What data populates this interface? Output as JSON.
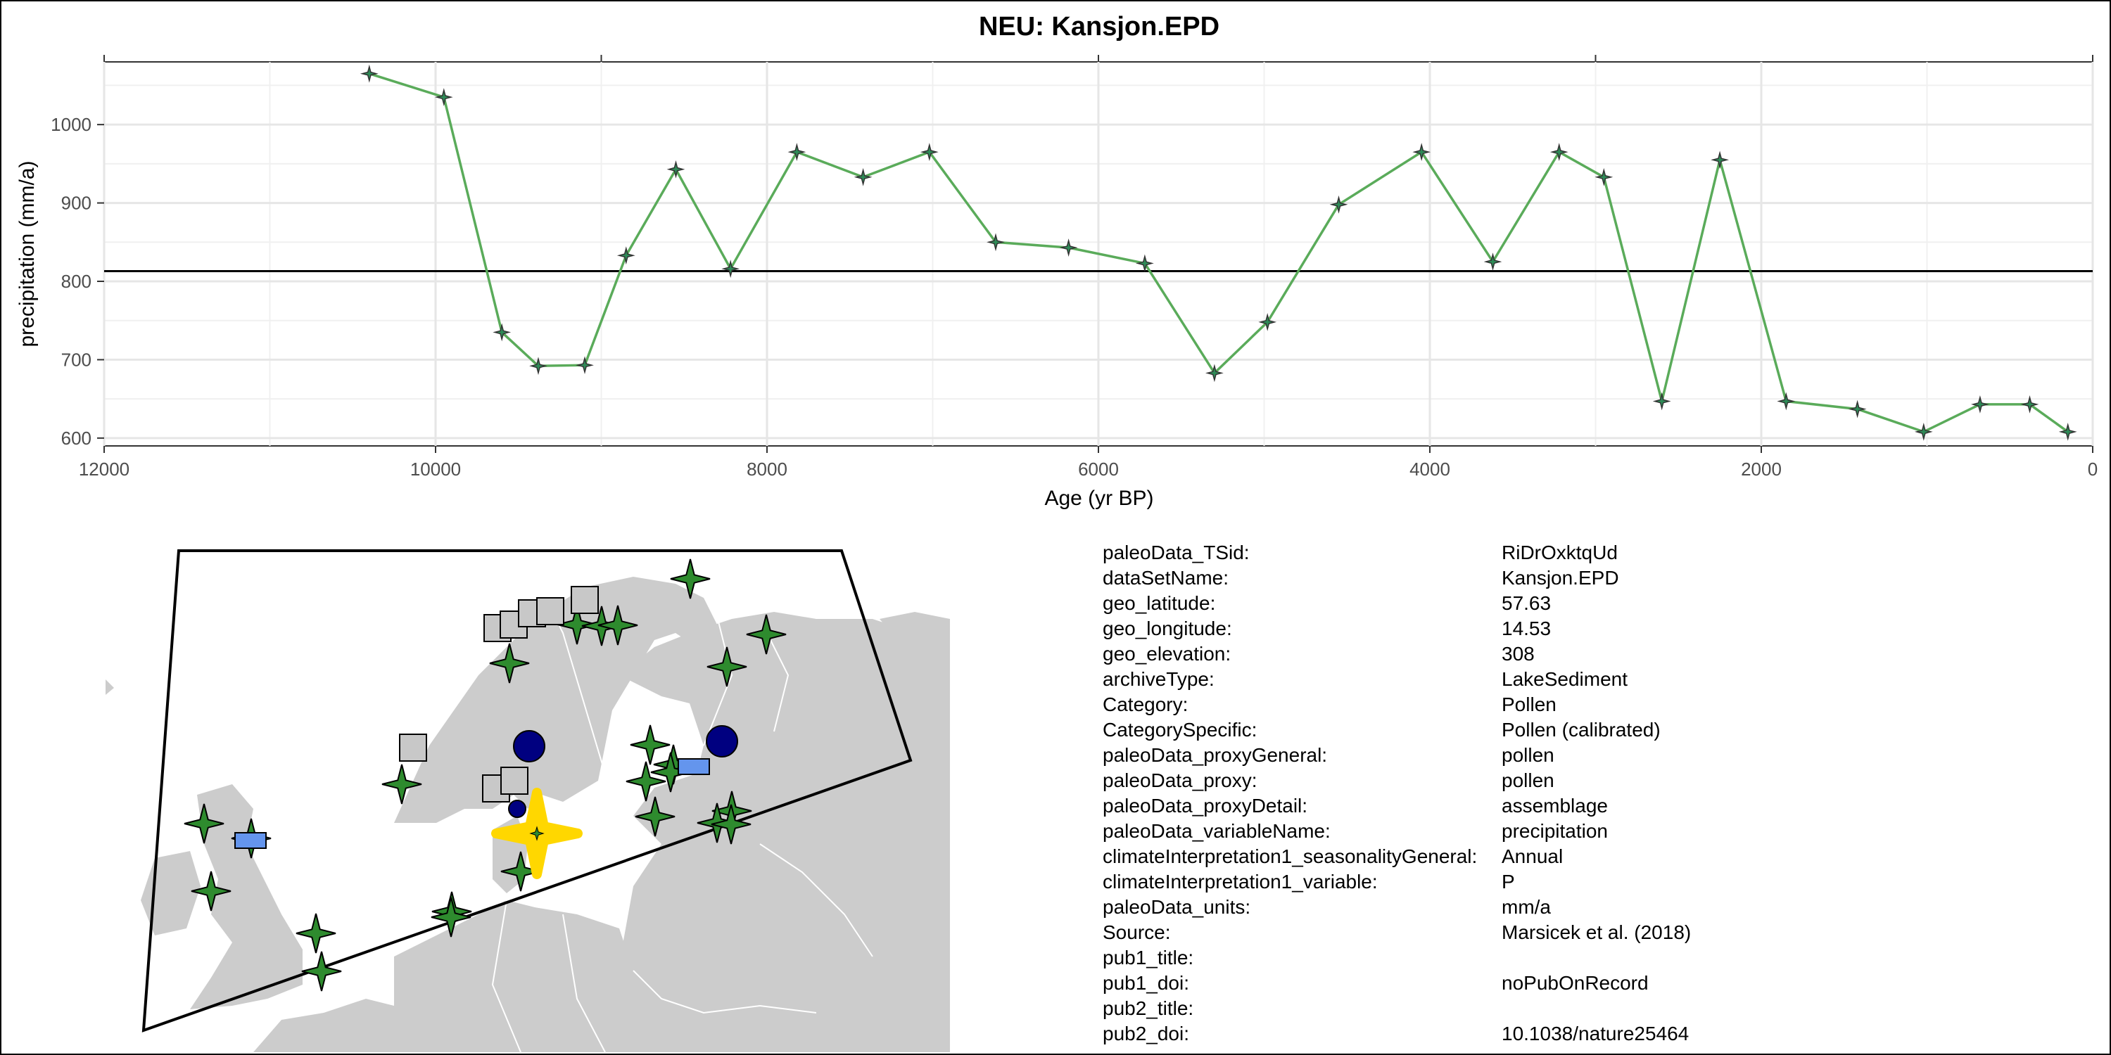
{
  "colors": {
    "line": "#5aab5a",
    "point_fill": "#2e8b57",
    "star_green": "#2e8b2e",
    "square_gray": "#c8c8c8",
    "circle_navy": "#000080",
    "rect_blue": "#6495ed",
    "highlight_yellow": "#ffd700",
    "land": "#cccccc",
    "reference_line": "#000000"
  },
  "chart_data": {
    "type": "line",
    "title": "NEU: Kansjon.EPD",
    "xlabel": "Age (yr BP)",
    "ylabel": "precipitation (mm/a)",
    "xlim": [
      12000,
      0
    ],
    "ylim": [
      590,
      1080
    ],
    "x_reversed": true,
    "x_ticks": [
      12000,
      10000,
      8000,
      6000,
      4000,
      2000,
      0
    ],
    "x_tick_labels": [
      "12000",
      "10000",
      "8000",
      "6000",
      "4000",
      "2000",
      "0"
    ],
    "y_ticks": [
      600,
      700,
      800,
      900,
      1000
    ],
    "y_tick_labels": [
      "600",
      "700",
      "800",
      "900",
      "1000"
    ],
    "grid": true,
    "reference_line_y": 813,
    "marker": "four-point-star",
    "x": [
      10400,
      9950,
      9600,
      9380,
      9100,
      8850,
      8550,
      8220,
      7820,
      7420,
      7020,
      6620,
      6180,
      5720,
      5300,
      4980,
      4550,
      4050,
      3620,
      3220,
      2950,
      2600,
      2250,
      1850,
      1420,
      1020,
      680,
      380,
      150
    ],
    "y": [
      1065,
      1035,
      735,
      692,
      693,
      833,
      943,
      816,
      965,
      933,
      965,
      850,
      843,
      823,
      683,
      748,
      898,
      965,
      825,
      965,
      933,
      647,
      955,
      647,
      637,
      608,
      643,
      643,
      608
    ]
  },
  "map": {
    "legend_shapes": [
      "star",
      "square",
      "circle",
      "rectangle"
    ]
  },
  "metadata": [
    {
      "key": "paleoData_TSid:",
      "value": "RiDrOxktqUd"
    },
    {
      "key": "dataSetName:",
      "value": "Kansjon.EPD"
    },
    {
      "key": "geo_latitude:",
      "value": "57.63"
    },
    {
      "key": "geo_longitude:",
      "value": "14.53"
    },
    {
      "key": "geo_elevation:",
      "value": "308"
    },
    {
      "key": "archiveType:",
      "value": "LakeSediment"
    },
    {
      "key": "Category:",
      "value": "Pollen"
    },
    {
      "key": "CategorySpecific:",
      "value": "Pollen (calibrated)"
    },
    {
      "key": "paleoData_proxyGeneral:",
      "value": "pollen"
    },
    {
      "key": "paleoData_proxy:",
      "value": "pollen"
    },
    {
      "key": "paleoData_proxyDetail:",
      "value": "assemblage"
    },
    {
      "key": "paleoData_variableName:",
      "value": "precipitation"
    },
    {
      "key": "climateInterpretation1_seasonalityGeneral:",
      "value": "Annual"
    },
    {
      "key": "climateInterpretation1_variable:",
      "value": "P"
    },
    {
      "key": "paleoData_units:",
      "value": "mm/a"
    },
    {
      "key": "Source:",
      "value": "Marsicek et al. (2018)"
    },
    {
      "key": "pub1_title:",
      "value": ""
    },
    {
      "key": "pub1_doi:",
      "value": "noPubOnRecord"
    },
    {
      "key": "pub2_title:",
      "value": ""
    },
    {
      "key": "pub2_doi:",
      "value": "10.1038/nature25464"
    }
  ]
}
